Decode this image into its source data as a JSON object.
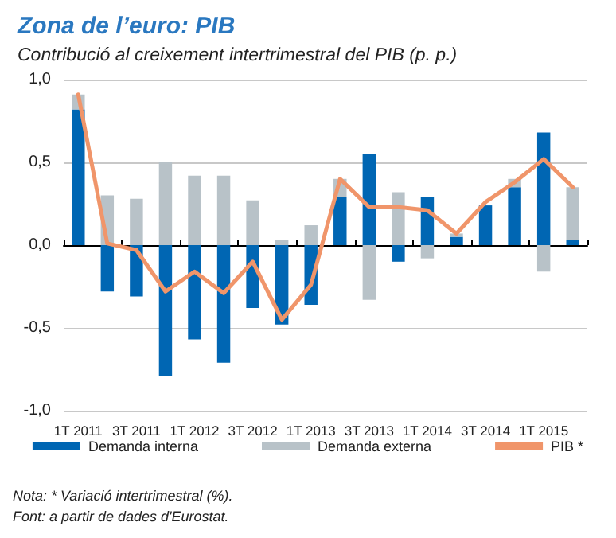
{
  "chart_data": {
    "type": "bar",
    "title": "Zona de l’euro: PIB",
    "subtitle": "Contribució al creixement intertrimestral del PIB (p. p.)",
    "categories": [
      "1T 2011",
      null,
      "3T 2011",
      null,
      "1T 2012",
      null,
      "3T 2012",
      null,
      "1T 2013",
      null,
      "3T 2013",
      null,
      "1T 2014",
      null,
      "3T 2014",
      null,
      "1T 2015",
      null
    ],
    "series": [
      {
        "name": "Demanda interna",
        "color": "#0066b3",
        "values": [
          0.82,
          -0.28,
          -0.31,
          -0.79,
          -0.57,
          -0.71,
          -0.38,
          -0.48,
          -0.36,
          0.29,
          0.55,
          -0.1,
          0.29,
          0.05,
          0.24,
          0.35,
          0.68,
          0.03
        ]
      },
      {
        "name": "Demanda externa",
        "color": "#b8c2c8",
        "values": [
          0.09,
          0.3,
          0.28,
          0.5,
          0.42,
          0.42,
          0.27,
          0.03,
          0.12,
          0.11,
          -0.33,
          0.32,
          -0.08,
          0.02,
          null,
          0.05,
          -0.16,
          0.32
        ]
      },
      {
        "name": "PIB *",
        "type": "line",
        "color": "#f0956a",
        "values": [
          0.91,
          0.01,
          -0.03,
          -0.28,
          -0.16,
          -0.29,
          -0.1,
          -0.45,
          -0.24,
          0.4,
          0.23,
          0.23,
          0.21,
          0.07,
          0.26,
          0.38,
          0.52,
          0.35
        ]
      }
    ],
    "stacked": true,
    "ylim": [
      -1,
      1
    ],
    "yticks": [
      {
        "value": -1,
        "label": "-1,0"
      },
      {
        "value": -0.5,
        "label": "-0,5"
      },
      {
        "value": 0,
        "label": "0,0"
      },
      {
        "value": 0.5,
        "label": "0,5"
      },
      {
        "value": 1,
        "label": "1,0"
      }
    ],
    "grid": "y",
    "legend": "bottom",
    "marker": "none",
    "line_style": "solid",
    "annotations": [
      "Nota: * Variació intertrimestral (%).",
      "Font: a partir de dades d'Eurostat."
    ]
  }
}
